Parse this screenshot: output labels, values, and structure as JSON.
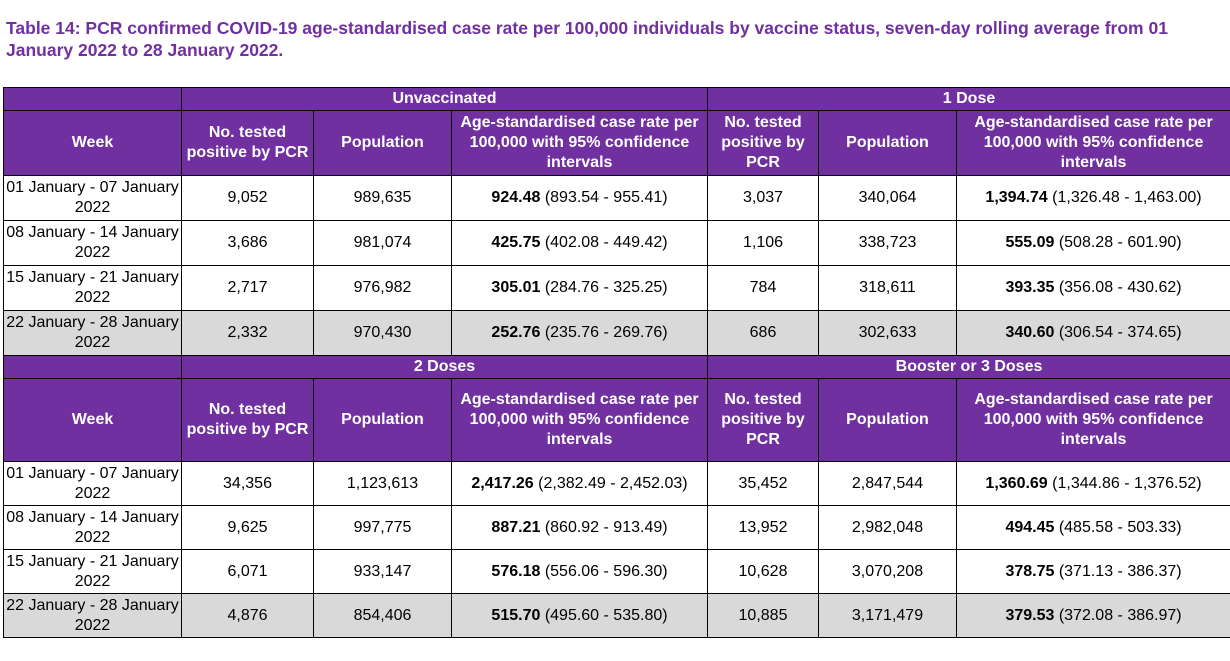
{
  "title": "Table 14: PCR confirmed COVID-19 age-standardised case rate per 100,000 individuals by vaccine status, seven-day rolling average from 01 January 2022 to 28 January 2022.",
  "headers": {
    "week": "Week",
    "tested": "No. tested positive by PCR",
    "population": "Population",
    "rate": "Age-standardised case rate per 100,000 with 95% confidence intervals"
  },
  "sections": [
    {
      "groups": [
        "Unvaccinated",
        "1 Dose"
      ],
      "rows": [
        {
          "week": "01 January - 07 January 2022",
          "a_tested": "9,052",
          "a_pop": "989,635",
          "a_rate": "924.48",
          "a_ci": "(893.54 - 955.41)",
          "b_tested": "3,037",
          "b_pop": "340,064",
          "b_rate": "1,394.74",
          "b_ci": "(1,326.48 - 1,463.00)"
        },
        {
          "week": "08 January - 14 January 2022",
          "a_tested": "3,686",
          "a_pop": "981,074",
          "a_rate": "425.75",
          "a_ci": "(402.08 - 449.42)",
          "b_tested": "1,106",
          "b_pop": "338,723",
          "b_rate": "555.09",
          "b_ci": "(508.28 - 601.90)"
        },
        {
          "week": "15 January - 21 January 2022",
          "a_tested": "2,717",
          "a_pop": "976,982",
          "a_rate": "305.01",
          "a_ci": "(284.76 - 325.25)",
          "b_tested": "784",
          "b_pop": "318,611",
          "b_rate": "393.35",
          "b_ci": "(356.08 - 430.62)"
        },
        {
          "week": "22 January - 28 January 2022",
          "a_tested": "2,332",
          "a_pop": "970,430",
          "a_rate": "252.76",
          "a_ci": "(235.76 - 269.76)",
          "b_tested": "686",
          "b_pop": "302,633",
          "b_rate": "340.60",
          "b_ci": "(306.54 - 374.65)"
        }
      ]
    },
    {
      "groups": [
        "2 Doses",
        "Booster or 3 Doses"
      ],
      "rows": [
        {
          "week": "01 January - 07 January 2022",
          "a_tested": "34,356",
          "a_pop": "1,123,613",
          "a_rate": "2,417.26",
          "a_ci": "(2,382.49 - 2,452.03)",
          "b_tested": "35,452",
          "b_pop": "2,847,544",
          "b_rate": "1,360.69",
          "b_ci": "(1,344.86 - 1,376.52)"
        },
        {
          "week": "08 January - 14 January 2022",
          "a_tested": "9,625",
          "a_pop": "997,775",
          "a_rate": "887.21",
          "a_ci": "(860.92 - 913.49)",
          "b_tested": "13,952",
          "b_pop": "2,982,048",
          "b_rate": "494.45",
          "b_ci": "(485.58 - 503.33)"
        },
        {
          "week": "15 January - 21 January 2022",
          "a_tested": "6,071",
          "a_pop": "933,147",
          "a_rate": "576.18",
          "a_ci": "(556.06 - 596.30)",
          "b_tested": "10,628",
          "b_pop": "3,070,208",
          "b_rate": "378.75",
          "b_ci": "(371.13 - 386.37)"
        },
        {
          "week": "22 January - 28 January 2022",
          "a_tested": "4,876",
          "a_pop": "854,406",
          "a_rate": "515.70",
          "a_ci": "(495.60 - 535.80)",
          "b_tested": "10,885",
          "b_pop": "3,171,479",
          "b_rate": "379.53",
          "b_ci": "(372.08 - 386.97)"
        }
      ]
    }
  ],
  "colors": {
    "header_bg": "#7030a0",
    "header_text": "#ffffff",
    "title_text": "#7030a0",
    "shaded_row": "#d9d9d9"
  }
}
